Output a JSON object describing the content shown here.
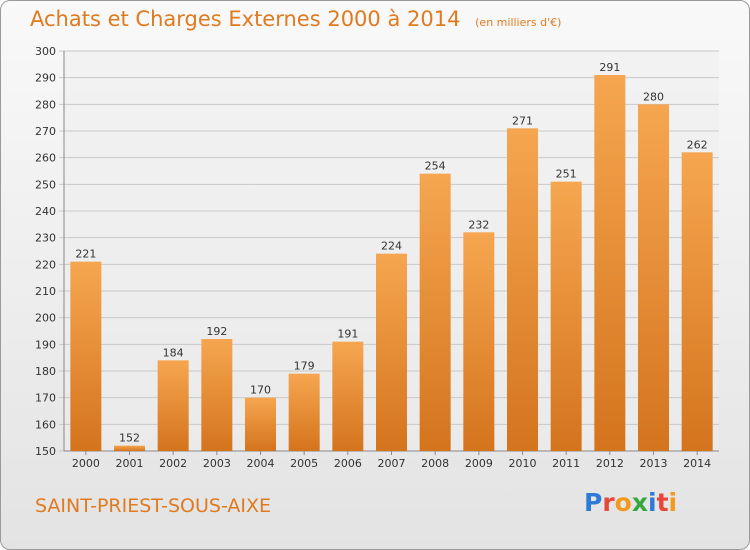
{
  "header": {
    "title": "Achats et Charges Externes 2000 à 2014",
    "unit": "(en milliers d'€)"
  },
  "footer": {
    "place": "SAINT-PRIEST-SOUS-AIXE",
    "logo": [
      "P",
      "r",
      "o",
      "x",
      "i",
      "t",
      "i"
    ],
    "logo_colors": [
      "#2d7bd6",
      "#e9463a",
      "#f39a1e",
      "#36a83d",
      "#2d7bd6",
      "#e9463a",
      "#f39a1e"
    ]
  },
  "colors": {
    "bar_light": "#f6a650",
    "bar_dark": "#d4741d",
    "title": "#e07a1f",
    "grid": "#c9c9c9"
  },
  "chart_data": {
    "type": "bar",
    "categories": [
      "2000",
      "2001",
      "2002",
      "2003",
      "2004",
      "2005",
      "2006",
      "2007",
      "2008",
      "2009",
      "2010",
      "2011",
      "2012",
      "2013",
      "2014"
    ],
    "values": [
      221,
      152,
      184,
      192,
      170,
      179,
      191,
      224,
      254,
      232,
      271,
      251,
      291,
      280,
      262
    ],
    "ylim": [
      150,
      300
    ],
    "yticks": [
      150,
      160,
      170,
      180,
      190,
      200,
      210,
      220,
      230,
      240,
      250,
      260,
      270,
      280,
      290,
      300
    ],
    "grid": true
  }
}
